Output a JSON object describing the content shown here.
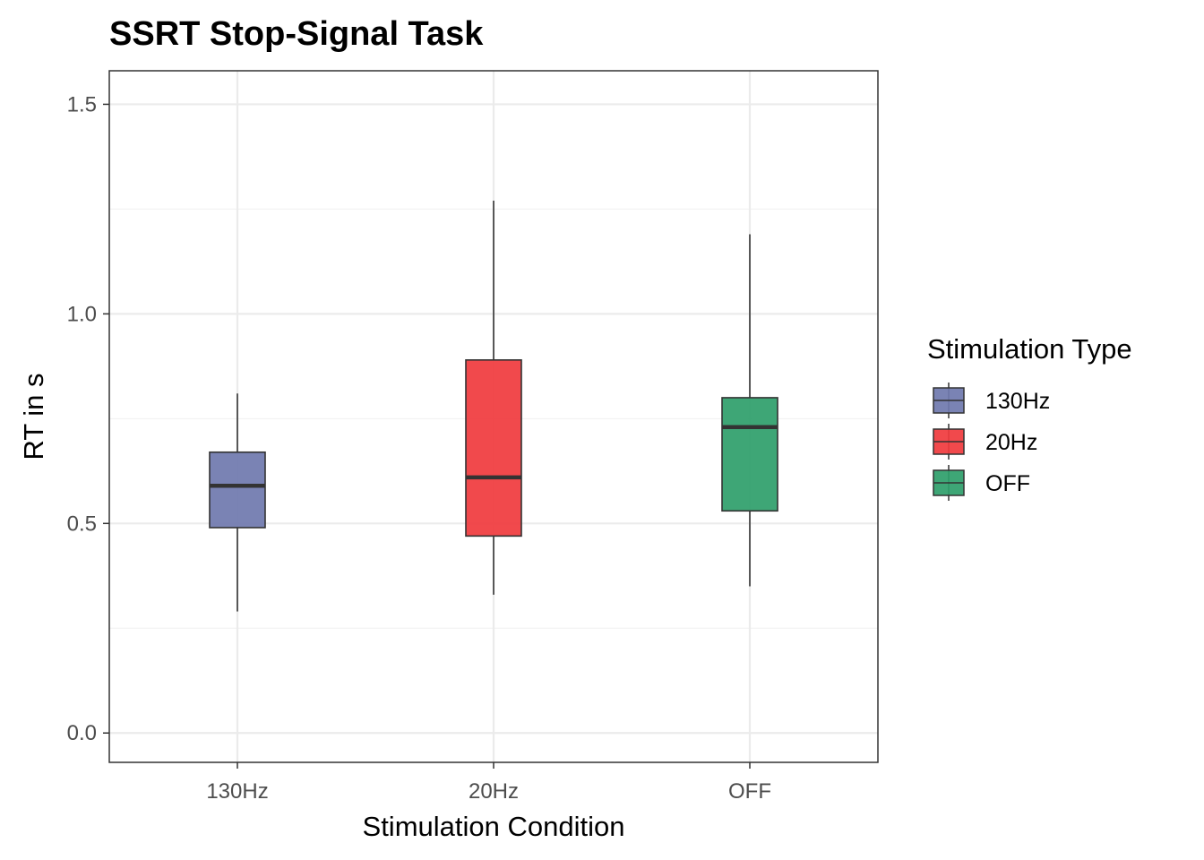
{
  "chart_data": {
    "type": "boxplot",
    "title": "SSRT Stop-Signal Task",
    "xlabel": "Stimulation Condition",
    "ylabel": "RT in s",
    "ylim": [
      -0.07,
      1.58
    ],
    "yticks": [
      0.0,
      0.5,
      1.0,
      1.5
    ],
    "ytick_labels": [
      "0.0",
      "0.5",
      "1.0",
      "1.5"
    ],
    "minor_grid": [
      0.25,
      0.75,
      1.25
    ],
    "categories": [
      "130Hz",
      "20Hz",
      "OFF"
    ],
    "grid": true,
    "legend": {
      "title": "Stimulation Type",
      "position": "right",
      "entries": [
        "130Hz",
        "20Hz",
        "OFF"
      ]
    },
    "series": [
      {
        "name": "130Hz",
        "color": "#6f78ae",
        "min": 0.29,
        "q1": 0.49,
        "median": 0.59,
        "q3": 0.67,
        "max": 0.81
      },
      {
        "name": "20Hz",
        "color": "#f03a3d",
        "min": 0.33,
        "q1": 0.47,
        "median": 0.61,
        "q3": 0.89,
        "max": 1.27
      },
      {
        "name": "OFF",
        "color": "#2e9e6a",
        "min": 0.35,
        "q1": 0.53,
        "median": 0.73,
        "q3": 0.8,
        "max": 1.19
      }
    ]
  }
}
